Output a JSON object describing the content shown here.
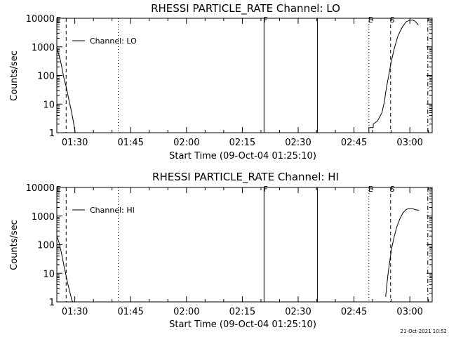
{
  "chart_data": [
    {
      "type": "line",
      "title": "RHESSI PARTICLE_RATE Channel: LO",
      "xlabel": "Start Time (09-Oct-04 01:25:10)",
      "ylabel": "Counts/sec",
      "yscale": "log",
      "ylim": [
        1,
        10000
      ],
      "xlim": [
        "01:25:10",
        "03:06:00"
      ],
      "grid": false,
      "legend_position": "top-left",
      "x_tick_labels": [
        "01:30",
        "01:45",
        "02:00",
        "02:15",
        "02:30",
        "02:45",
        "03:00"
      ],
      "y_tick_labels": [
        "1",
        "10",
        "100",
        "1000",
        "10000"
      ],
      "series": [
        {
          "name": "Channel: LO",
          "segments": [
            {
              "x": [
                "01:25:10",
                "01:25:40",
                "01:26:10",
                "01:26:40",
                "01:27:10",
                "01:27:40",
                "01:28:10",
                "01:28:40",
                "01:29:10",
                "01:29:40",
                "01:30:05"
              ],
              "y": [
                900,
                560,
                320,
                150,
                70,
                40,
                20,
                10,
                5,
                2.2,
                1
              ]
            },
            {
              "x": [
                "02:47:10",
                "02:49:00",
                "02:49:00",
                "02:50:10",
                "02:50:10",
                "02:51:20",
                "02:52:30",
                "02:53:10",
                "02:53:40",
                "02:54:20",
                "02:55:00",
                "02:55:50",
                "02:56:50",
                "02:58:00",
                "02:59:00",
                "03:00:00",
                "03:00:50",
                "03:01:20",
                "03:01:50",
                "03:02:10",
                "03:02:20"
              ],
              "y": [
                1,
                1,
                1.5,
                1.5,
                2,
                2.6,
                5,
                12,
                35,
                100,
                300,
                900,
                2500,
                5000,
                7500,
                8600,
                8600,
                8000,
                6800,
                6000,
                6000
              ]
            }
          ]
        }
      ],
      "markers": [
        {
          "label": "E",
          "x": "01:25:10",
          "style": "dash-dot"
        },
        {
          "label": "",
          "x": "01:27:40",
          "style": "dashed"
        },
        {
          "label": "",
          "x": "01:41:40",
          "style": "dotted"
        },
        {
          "label": "F",
          "x": "02:20:50",
          "style": "solid"
        },
        {
          "label": "",
          "x": "02:35:10",
          "style": "solid"
        },
        {
          "label": "E",
          "x": "02:49:00",
          "style": "dotted"
        },
        {
          "label": "S",
          "x": "02:54:50",
          "style": "dashed"
        },
        {
          "label": "",
          "x": "03:04:50",
          "style": "dash-dot"
        }
      ]
    },
    {
      "type": "line",
      "title": "RHESSI PARTICLE_RATE Channel: HI",
      "xlabel": "Start Time (09-Oct-04 01:25:10)",
      "ylabel": "Counts/sec",
      "yscale": "log",
      "ylim": [
        1,
        10000
      ],
      "xlim": [
        "01:25:10",
        "03:06:00"
      ],
      "grid": false,
      "legend_position": "top-left",
      "x_tick_labels": [
        "01:30",
        "01:45",
        "02:00",
        "02:15",
        "02:30",
        "02:45",
        "03:00"
      ],
      "y_tick_labels": [
        "1",
        "10",
        "100",
        "1000",
        "10000"
      ],
      "series": [
        {
          "name": "Channel: HI",
          "segments": [
            {
              "x": [
                "01:25:10",
                "01:25:40",
                "01:26:10",
                "01:26:40",
                "01:27:10",
                "01:27:40",
                "01:28:10",
                "01:28:40",
                "01:29:10",
                "01:29:25"
              ],
              "y": [
                200,
                130,
                70,
                35,
                16,
                8,
                4,
                2.2,
                1.2,
                1
              ]
            },
            {
              "x": [
                "02:53:30",
                "02:53:50",
                "02:54:10",
                "02:54:40",
                "02:55:10",
                "02:55:50",
                "02:56:30",
                "02:57:20",
                "02:58:10",
                "02:59:00",
                "02:59:40",
                "03:00:40",
                "03:01:40",
                "03:02:30"
              ],
              "y": [
                1.5,
                4,
                10,
                30,
                80,
                200,
                420,
                800,
                1300,
                1700,
                1800,
                1800,
                1650,
                1600
              ]
            }
          ]
        }
      ],
      "markers": [
        {
          "label": "E",
          "x": "01:25:10",
          "style": "dash-dot"
        },
        {
          "label": "",
          "x": "01:27:40",
          "style": "dashed"
        },
        {
          "label": "",
          "x": "01:41:40",
          "style": "dotted"
        },
        {
          "label": "F",
          "x": "02:20:50",
          "style": "solid"
        },
        {
          "label": "",
          "x": "02:35:10",
          "style": "solid"
        },
        {
          "label": "E",
          "x": "02:49:00",
          "style": "dotted"
        },
        {
          "label": "S",
          "x": "02:54:50",
          "style": "dashed"
        },
        {
          "label": "",
          "x": "03:04:50",
          "style": "dash-dot"
        }
      ]
    }
  ],
  "footer": {
    "timestamp": "21-Oct-2021 10:52"
  }
}
